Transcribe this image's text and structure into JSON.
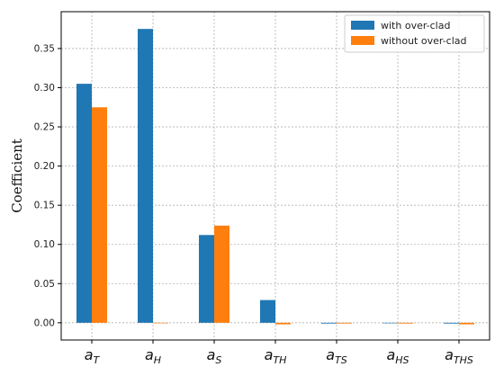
{
  "chart_data": {
    "type": "bar",
    "categories": [
      {
        "base": "a",
        "sub": "T"
      },
      {
        "base": "a",
        "sub": "H"
      },
      {
        "base": "a",
        "sub": "S"
      },
      {
        "base": "a",
        "sub": "TH"
      },
      {
        "base": "a",
        "sub": "TS"
      },
      {
        "base": "a",
        "sub": "HS"
      },
      {
        "base": "a",
        "sub": "THS"
      }
    ],
    "series": [
      {
        "name": "with over-clad",
        "color": "#1f77b4",
        "values": [
          0.305,
          0.375,
          0.112,
          0.029,
          -0.001,
          0.0,
          -0.001
        ]
      },
      {
        "name": "without over-clad",
        "color": "#ff7f0e",
        "values": [
          0.275,
          0.0,
          0.124,
          -0.002,
          -0.001,
          -0.001,
          -0.002
        ]
      }
    ],
    "ylabel": "Coefficient",
    "xlabel": "",
    "ylim": [
      -0.022,
      0.397
    ],
    "yticks": [
      "0.00",
      "0.05",
      "0.10",
      "0.15",
      "0.20",
      "0.25",
      "0.30",
      "0.35"
    ],
    "grid": true,
    "legend_position": "top-right"
  }
}
